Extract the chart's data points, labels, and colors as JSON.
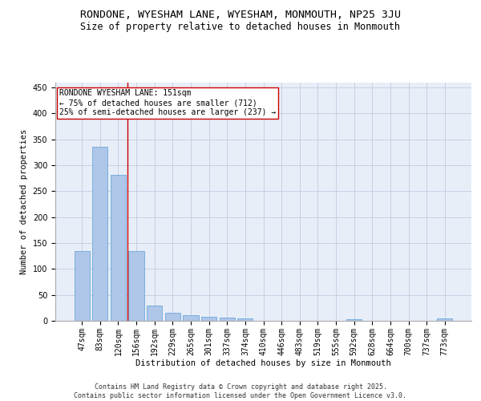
{
  "title1": "RONDONE, WYESHAM LANE, WYESHAM, MONMOUTH, NP25 3JU",
  "title2": "Size of property relative to detached houses in Monmouth",
  "xlabel": "Distribution of detached houses by size in Monmouth",
  "ylabel": "Number of detached properties",
  "categories": [
    "47sqm",
    "83sqm",
    "120sqm",
    "156sqm",
    "192sqm",
    "229sqm",
    "265sqm",
    "301sqm",
    "337sqm",
    "374sqm",
    "410sqm",
    "446sqm",
    "483sqm",
    "519sqm",
    "555sqm",
    "592sqm",
    "628sqm",
    "664sqm",
    "700sqm",
    "737sqm",
    "773sqm"
  ],
  "values": [
    134,
    336,
    281,
    135,
    29,
    15,
    11,
    7,
    6,
    4,
    0,
    0,
    0,
    0,
    0,
    3,
    0,
    0,
    0,
    0,
    4
  ],
  "bar_color": "#aec6e8",
  "bar_edge_color": "#5a9fd4",
  "vline_x": 2.5,
  "vline_color": "#cc0000",
  "annotation_text": "RONDONE WYESHAM LANE: 151sqm\n← 75% of detached houses are smaller (712)\n25% of semi-detached houses are larger (237) →",
  "annotation_box_color": "#ffffff",
  "annotation_box_edge_color": "#cc0000",
  "ylim": [
    0,
    460
  ],
  "yticks": [
    0,
    50,
    100,
    150,
    200,
    250,
    300,
    350,
    400,
    450
  ],
  "footer_text": "Contains HM Land Registry data © Crown copyright and database right 2025.\nContains public sector information licensed under the Open Government Licence v3.0.",
  "bg_color": "#e8eef8",
  "grid_color": "#c0cce0",
  "title1_fontsize": 9.5,
  "title2_fontsize": 8.5,
  "axis_label_fontsize": 7.5,
  "tick_fontsize": 7,
  "annotation_fontsize": 7,
  "footer_fontsize": 6
}
